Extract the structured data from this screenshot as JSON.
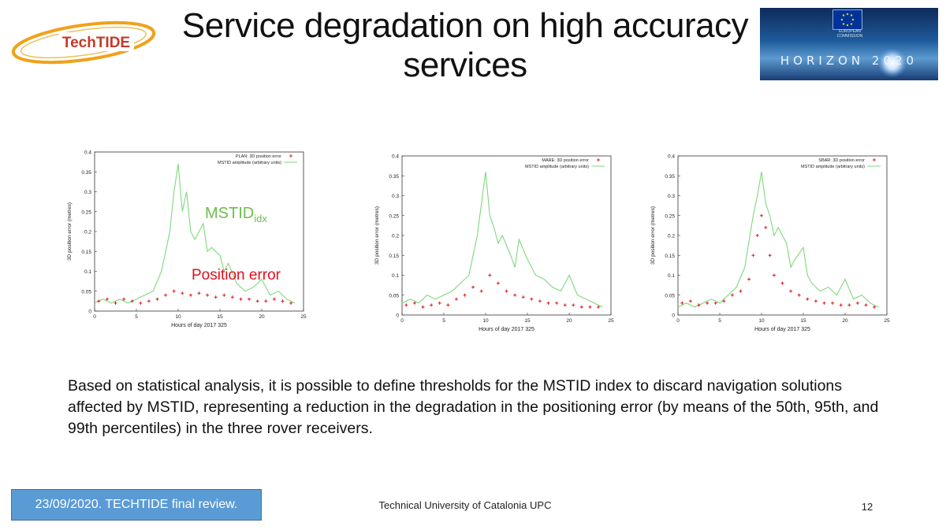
{
  "title": "Service degradation on high accuracy services",
  "logo": {
    "text": "TechTIDE"
  },
  "banner": {
    "text": "HORIZON 2020",
    "flag_text": "EUROPEAN COMMISSION"
  },
  "overlays": {
    "mstid_label": "MSTID",
    "mstid_sub": "idx",
    "position_label": "Position error"
  },
  "colors": {
    "error_series": "#e01818",
    "mstid_series": "#7ed87a",
    "footer_box": "#5b9bd5",
    "mstid_label": "#6cbf50",
    "position_label": "#e0101a"
  },
  "chart_data": [
    {
      "type": "scatter",
      "xlabel": "Hours of day 2017 325",
      "ylabel": "3D position error (metres)",
      "xlim": [
        0,
        25
      ],
      "ylim": [
        0,
        0.4
      ],
      "xticks": [
        0,
        5,
        10,
        15,
        20,
        25
      ],
      "yticks": [
        0,
        0.05,
        0.1,
        0.15,
        0.2,
        0.25,
        0.3,
        0.35,
        0.4
      ],
      "grid": false,
      "legend_position": "top-right",
      "series": [
        {
          "name": "PLAN: 3D position error",
          "kind": "points",
          "x": [
            0.5,
            1.5,
            2.5,
            3.5,
            4.5,
            5.5,
            6.5,
            7.5,
            8.5,
            9.5,
            10.5,
            11.5,
            12.5,
            13.5,
            14.5,
            15.5,
            16.5,
            17.5,
            18.5,
            19.5,
            20.5,
            21.5,
            22.5,
            23.5
          ],
          "y": [
            0.025,
            0.03,
            0.02,
            0.03,
            0.025,
            0.02,
            0.025,
            0.03,
            0.04,
            0.05,
            0.045,
            0.04,
            0.045,
            0.04,
            0.035,
            0.04,
            0.035,
            0.03,
            0.03,
            0.025,
            0.025,
            0.03,
            0.025,
            0.02
          ]
        },
        {
          "name": "MSTID amplitude (arbitrary units)",
          "kind": "line",
          "x": [
            0,
            1,
            2,
            3,
            4,
            5,
            6,
            7,
            8,
            9,
            9.5,
            10,
            10.5,
            11,
            11.5,
            12,
            13,
            13.5,
            14,
            15,
            15.5,
            16,
            17,
            18,
            19,
            20,
            21,
            22,
            23,
            24
          ],
          "y": [
            0.02,
            0.03,
            0.02,
            0.03,
            0.02,
            0.03,
            0.04,
            0.05,
            0.1,
            0.2,
            0.3,
            0.37,
            0.25,
            0.3,
            0.2,
            0.18,
            0.22,
            0.15,
            0.16,
            0.14,
            0.1,
            0.12,
            0.07,
            0.05,
            0.06,
            0.08,
            0.04,
            0.05,
            0.03,
            0.02
          ]
        }
      ]
    },
    {
      "type": "scatter",
      "xlabel": "Hours of day 2017 325",
      "ylabel": "3D position error (metres)",
      "xlim": [
        0,
        25
      ],
      "ylim": [
        0,
        0.4
      ],
      "xticks": [
        0,
        5,
        10,
        15,
        20,
        25
      ],
      "yticks": [
        0,
        0.05,
        0.1,
        0.15,
        0.2,
        0.25,
        0.3,
        0.35,
        0.4
      ],
      "grid": false,
      "legend_position": "top-right",
      "series": [
        {
          "name": "MARE: 3D position error",
          "kind": "points",
          "x": [
            0.5,
            1.5,
            2.5,
            3.5,
            4.5,
            5.5,
            6.5,
            7.5,
            8.5,
            9.5,
            10.5,
            11.5,
            12.5,
            13.5,
            14.5,
            15.5,
            16.5,
            17.5,
            18.5,
            19.5,
            20.5,
            21.5,
            22.5,
            23.5
          ],
          "y": [
            0.025,
            0.03,
            0.02,
            0.025,
            0.03,
            0.025,
            0.04,
            0.05,
            0.07,
            0.06,
            0.1,
            0.08,
            0.06,
            0.05,
            0.045,
            0.04,
            0.035,
            0.03,
            0.03,
            0.025,
            0.025,
            0.02,
            0.02,
            0.02
          ]
        },
        {
          "name": "MSTID amplitude (arbitrary units)",
          "kind": "line",
          "x": [
            0,
            1,
            2,
            3,
            4,
            5,
            6,
            7,
            8,
            9,
            9.5,
            10,
            10.5,
            11,
            11.5,
            12,
            13,
            13.5,
            14,
            15,
            15.5,
            16,
            17,
            18,
            19,
            20,
            21,
            22,
            23,
            24
          ],
          "y": [
            0.03,
            0.04,
            0.03,
            0.05,
            0.04,
            0.05,
            0.06,
            0.08,
            0.1,
            0.2,
            0.28,
            0.36,
            0.25,
            0.22,
            0.18,
            0.2,
            0.15,
            0.12,
            0.19,
            0.14,
            0.12,
            0.1,
            0.09,
            0.07,
            0.06,
            0.1,
            0.05,
            0.04,
            0.03,
            0.02
          ]
        }
      ]
    },
    {
      "type": "scatter",
      "xlabel": "Hours of day 2017 325",
      "ylabel": "3D position error (metres)",
      "xlim": [
        0,
        25
      ],
      "ylim": [
        0,
        0.4
      ],
      "xticks": [
        0,
        5,
        10,
        15,
        20,
        25
      ],
      "yticks": [
        0,
        0.05,
        0.1,
        0.15,
        0.2,
        0.25,
        0.3,
        0.35,
        0.4
      ],
      "grid": false,
      "legend_position": "top-right",
      "series": [
        {
          "name": "SBAR: 3D position error",
          "kind": "points",
          "x": [
            0.5,
            1.5,
            2.5,
            3.5,
            4.5,
            5.5,
            6.5,
            7.5,
            8.5,
            9,
            9.5,
            10,
            10.5,
            11,
            11.5,
            12.5,
            13.5,
            14.5,
            15.5,
            16.5,
            17.5,
            18.5,
            19.5,
            20.5,
            21.5,
            22.5,
            23.5
          ],
          "y": [
            0.03,
            0.035,
            0.025,
            0.03,
            0.03,
            0.035,
            0.05,
            0.06,
            0.09,
            0.15,
            0.2,
            0.25,
            0.22,
            0.15,
            0.1,
            0.08,
            0.06,
            0.05,
            0.04,
            0.035,
            0.03,
            0.03,
            0.025,
            0.025,
            0.03,
            0.025,
            0.02
          ]
        },
        {
          "name": "MSTID amplitude (arbitrary units)",
          "kind": "line",
          "x": [
            0,
            1,
            2,
            3,
            4,
            5,
            6,
            7,
            8,
            9,
            9.5,
            10,
            10.5,
            11,
            11.5,
            12,
            13,
            13.5,
            14,
            15,
            15.5,
            16,
            17,
            18,
            19,
            20,
            21,
            22,
            23,
            24
          ],
          "y": [
            0.02,
            0.03,
            0.02,
            0.03,
            0.04,
            0.03,
            0.05,
            0.07,
            0.12,
            0.25,
            0.3,
            0.36,
            0.28,
            0.25,
            0.2,
            0.22,
            0.18,
            0.12,
            0.14,
            0.17,
            0.1,
            0.08,
            0.06,
            0.07,
            0.05,
            0.09,
            0.04,
            0.05,
            0.03,
            0.02
          ]
        }
      ]
    }
  ],
  "body_text": "Based on statistical analysis, it is possible to define thresholds for the MSTID index to discard navigation solutions affected by MSTID, representing a reduction in the degradation in the positioning error (by means of the 50th, 95th, and 99th percentiles) in the three rover receivers.",
  "footer": {
    "left": "23/09/2020. TECHTIDE final review.",
    "center": "Technical University of Catalonia UPC",
    "page": "12"
  }
}
